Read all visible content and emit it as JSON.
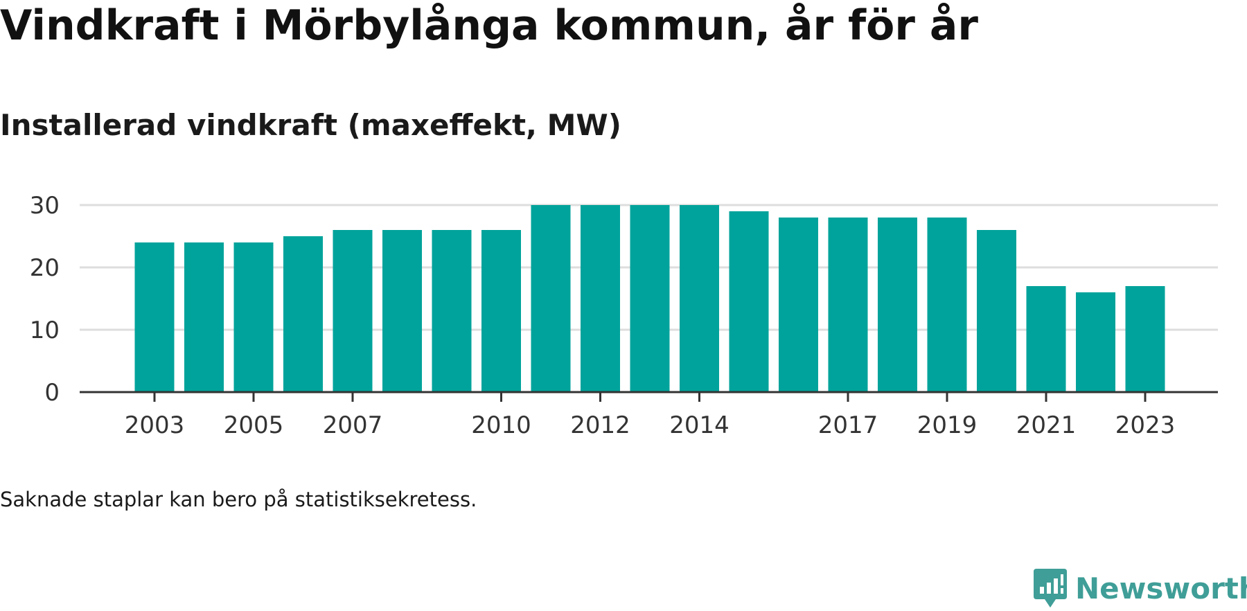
{
  "chart_data": {
    "type": "bar",
    "title": "Vindkraft i Mörbylånga kommun, år för år",
    "subtitle": "Installerad vindkraft (maxeffekt, MW)",
    "categories": [
      "2003",
      "2004",
      "2005",
      "2006",
      "2007",
      "2008",
      "2009",
      "2010",
      "2011",
      "2012",
      "2013",
      "2014",
      "2015",
      "2016",
      "2017",
      "2018",
      "2019",
      "2020",
      "2021",
      "2022",
      "2023"
    ],
    "values": [
      24,
      24,
      24,
      25,
      26,
      26,
      26,
      26,
      30,
      30,
      30,
      30,
      29,
      28,
      28,
      28,
      28,
      26,
      17,
      16,
      17
    ],
    "x_tick_labels": [
      "2003",
      "2005",
      "2007",
      "2010",
      "2012",
      "2014",
      "2017",
      "2019",
      "2021",
      "2023"
    ],
    "y_ticks": [
      0,
      10,
      20,
      30
    ],
    "ylim": [
      0,
      30
    ],
    "xlabel": "",
    "ylabel": "",
    "grid": true,
    "legend": "none",
    "bar_color": "#00a39b"
  },
  "note": "Saknade staplar kan bero på statistiksekretess.",
  "brand": {
    "name": "Newsworthy",
    "icon": "newsworthy-logo-icon",
    "color": "#3f9e97"
  }
}
